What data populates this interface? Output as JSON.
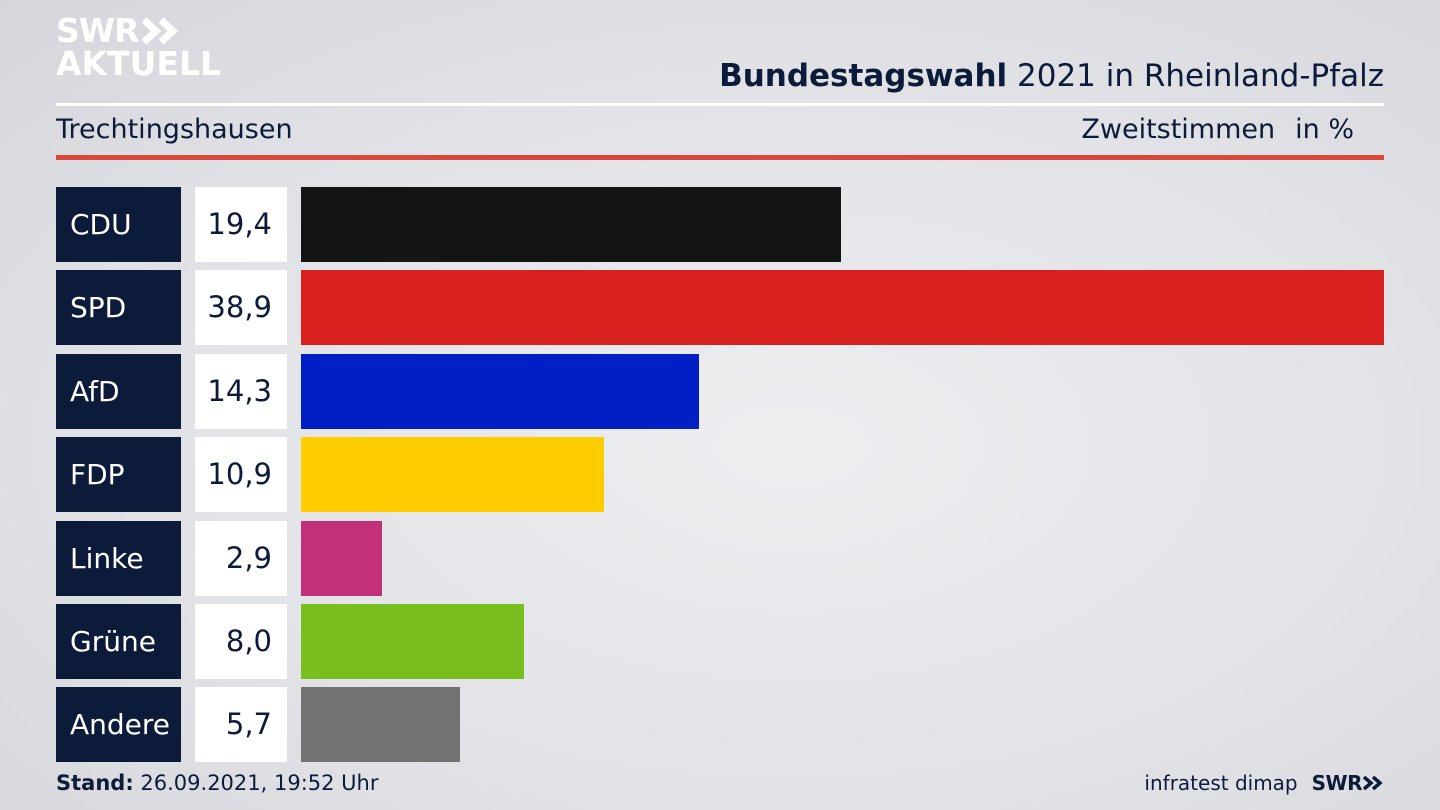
{
  "brand": {
    "line1": "SWR",
    "line2": "AKTUELL"
  },
  "header": {
    "title_bold": "Bundestagswahl",
    "title_rest": " 2021 in Rheinland-Pfalz"
  },
  "subheader": {
    "location": "Trechtingshausen",
    "measure": "Zweitstimmen",
    "unit": "in %"
  },
  "colors": {
    "label_bg": "#0c1b3a",
    "accent_rule": "#d8483b"
  },
  "chart_data": {
    "type": "bar",
    "orientation": "horizontal",
    "categories": [
      "CDU",
      "SPD",
      "AfD",
      "FDP",
      "Linke",
      "Grüne",
      "Andere"
    ],
    "values": [
      19.4,
      38.9,
      14.3,
      10.9,
      2.9,
      8.0,
      5.7
    ],
    "value_labels": [
      "19,4",
      "38,9",
      "14,3",
      "10,9",
      "2,9",
      "8,0",
      "5,7"
    ],
    "colors": [
      "#141414",
      "#d8201e",
      "#0020c6",
      "#ffcc00",
      "#c2307a",
      "#78be1e",
      "#727272"
    ],
    "xlim": [
      0,
      38.9
    ]
  },
  "footer": {
    "stand_label": "Stand:",
    "stand_value": " 26.09.2021, 19:52 Uhr",
    "source": "infratest dimap",
    "logo": "SWR"
  }
}
